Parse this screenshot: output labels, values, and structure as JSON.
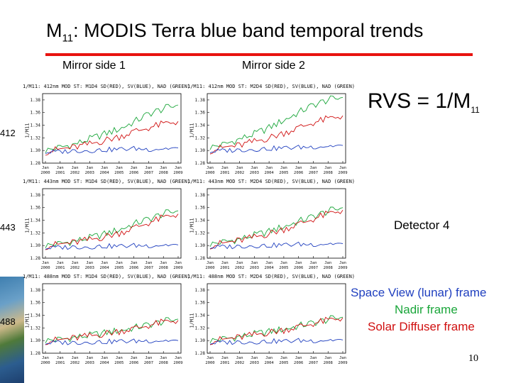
{
  "slide": {
    "title_main": "M",
    "title_sub": "11",
    "title_rest": ": MODIS Terra blue band temporal trends",
    "col1": "Mirror side 1",
    "col2": "Mirror side 2",
    "rvs_main": "RVS = 1/M",
    "rvs_sub": "11",
    "detector": "Detector 4",
    "legend": {
      "space_view": "Space View (lunar) frame",
      "nadir": "Nadir frame",
      "solar_diffuser": "Solar Diffuser frame"
    },
    "page_number": "10"
  },
  "colors": {
    "red_rule": "#e8130f",
    "space_view": "#1f3fbf",
    "nadir": "#1aa63a",
    "solar_diffuser": "#d01010"
  },
  "chart_data": [
    {
      "type": "line",
      "row_label": "412",
      "mirror": "1",
      "title": "1/M11: 412nm MOD ST: M1D4 SD(RED), SV(BLUE), NAD (GREEN)",
      "ylabel": "1/M11",
      "yticks": [
        "1.38",
        "1.36",
        "1.34",
        "1.32",
        "1.30",
        "1.28"
      ],
      "ylim": [
        1.28,
        1.39
      ],
      "xticks": [
        "Jan 2000",
        "Jan 2001",
        "Jan 2002",
        "Jan 2003",
        "Jan 2004",
        "Jan 2005",
        "Jan 2006",
        "Jan 2007",
        "Jan 2008",
        "Jan 2009"
      ],
      "series": [
        {
          "color": "#1aa63a",
          "values": [
            1.3,
            1.305,
            1.31,
            1.318,
            1.326,
            1.334,
            1.345,
            1.358,
            1.366,
            1.372
          ]
        },
        {
          "color": "#d01010",
          "values": [
            1.298,
            1.302,
            1.305,
            1.31,
            1.316,
            1.322,
            1.33,
            1.336,
            1.342,
            1.346
          ]
        },
        {
          "color": "#1f3fbf",
          "values": [
            1.297,
            1.298,
            1.3,
            1.3,
            1.301,
            1.302,
            1.303,
            1.302,
            1.303,
            1.304
          ]
        }
      ]
    },
    {
      "type": "line",
      "row_label": "412",
      "mirror": "2",
      "title": "1/M11: 412nm MOD ST: M2D4 SD(RED), SV(BLUE), NAD (GREEN)",
      "ylabel": "1/M11",
      "yticks": [
        "1.38",
        "1.36",
        "1.34",
        "1.32",
        "1.30",
        "1.28"
      ],
      "ylim": [
        1.28,
        1.39
      ],
      "xticks": [
        "Jan 2000",
        "Jan 2001",
        "Jan 2002",
        "Jan 2003",
        "Jan 2004",
        "Jan 2005",
        "Jan 2006",
        "Jan 2007",
        "Jan 2008",
        "Jan 2009"
      ],
      "series": [
        {
          "color": "#1aa63a",
          "values": [
            1.305,
            1.31,
            1.318,
            1.326,
            1.336,
            1.348,
            1.36,
            1.372,
            1.38,
            1.384
          ]
        },
        {
          "color": "#d01010",
          "values": [
            1.3,
            1.305,
            1.308,
            1.314,
            1.32,
            1.328,
            1.336,
            1.344,
            1.35,
            1.355
          ]
        },
        {
          "color": "#1f3fbf",
          "values": [
            1.298,
            1.3,
            1.301,
            1.302,
            1.303,
            1.304,
            1.305,
            1.306,
            1.307,
            1.308
          ]
        }
      ]
    },
    {
      "type": "line",
      "row_label": "443",
      "mirror": "1",
      "title": "1/M11: 443nm MOD ST: M1D4 SD(RED), SV(BLUE), NAD (GREEN)",
      "ylabel": "1/M11",
      "yticks": [
        "1.38",
        "1.36",
        "1.34",
        "1.32",
        "1.30",
        "1.28"
      ],
      "ylim": [
        1.28,
        1.39
      ],
      "xticks": [
        "Jan 2000",
        "Jan 2001",
        "Jan 2002",
        "Jan 2003",
        "Jan 2004",
        "Jan 2005",
        "Jan 2006",
        "Jan 2007",
        "Jan 2008",
        "Jan 2009"
      ],
      "series": [
        {
          "color": "#1aa63a",
          "values": [
            1.3,
            1.303,
            1.307,
            1.312,
            1.318,
            1.325,
            1.334,
            1.342,
            1.35,
            1.355
          ]
        },
        {
          "color": "#d01010",
          "values": [
            1.299,
            1.302,
            1.305,
            1.309,
            1.314,
            1.32,
            1.328,
            1.336,
            1.344,
            1.35
          ]
        },
        {
          "color": "#1f3fbf",
          "values": [
            1.296,
            1.297,
            1.298,
            1.298,
            1.299,
            1.299,
            1.3,
            1.3,
            1.301,
            1.301
          ]
        }
      ]
    },
    {
      "type": "line",
      "row_label": "443",
      "mirror": "2",
      "title": "1/M11: 443nm MOD ST: M2D4 SD(RED), SV(BLUE), NAD (GREEN)",
      "ylabel": "1/M11",
      "yticks": [
        "1.38",
        "1.36",
        "1.34",
        "1.32",
        "1.30",
        "1.28"
      ],
      "ylim": [
        1.28,
        1.39
      ],
      "xticks": [
        "Jan 2000",
        "Jan 2001",
        "Jan 2002",
        "Jan 2003",
        "Jan 2004",
        "Jan 2005",
        "Jan 2006",
        "Jan 2007",
        "Jan 2008",
        "Jan 2009"
      ],
      "series": [
        {
          "color": "#1aa63a",
          "values": [
            1.302,
            1.306,
            1.31,
            1.316,
            1.322,
            1.33,
            1.338,
            1.346,
            1.354,
            1.36
          ]
        },
        {
          "color": "#d01010",
          "values": [
            1.3,
            1.304,
            1.308,
            1.313,
            1.319,
            1.326,
            1.334,
            1.342,
            1.35,
            1.356
          ]
        },
        {
          "color": "#1f3fbf",
          "values": [
            1.297,
            1.298,
            1.299,
            1.3,
            1.3,
            1.301,
            1.302,
            1.302,
            1.303,
            1.303
          ]
        }
      ]
    },
    {
      "type": "line",
      "row_label": "488",
      "mirror": "1",
      "title": "1/M11: 488nm MOD ST: M1D4 SD(RED), SV(BLUE), NAD (GREEN)",
      "ylabel": "1/M11",
      "yticks": [
        "1.38",
        "1.36",
        "1.34",
        "1.32",
        "1.30",
        "1.28"
      ],
      "ylim": [
        1.28,
        1.39
      ],
      "xticks": [
        "Jan 2000",
        "Jan 2001",
        "Jan 2002",
        "Jan 2003",
        "Jan 2004",
        "Jan 2005",
        "Jan 2006",
        "Jan 2007",
        "Jan 2008",
        "Jan 2009"
      ],
      "series": [
        {
          "color": "#1aa63a",
          "values": [
            1.3,
            1.302,
            1.305,
            1.308,
            1.312,
            1.316,
            1.32,
            1.325,
            1.33,
            1.334
          ]
        },
        {
          "color": "#d01010",
          "values": [
            1.299,
            1.301,
            1.304,
            1.307,
            1.311,
            1.315,
            1.319,
            1.324,
            1.329,
            1.332
          ]
        },
        {
          "color": "#1f3fbf",
          "values": [
            1.296,
            1.297,
            1.297,
            1.298,
            1.298,
            1.299,
            1.299,
            1.3,
            1.3,
            1.3
          ]
        }
      ]
    },
    {
      "type": "line",
      "row_label": "488",
      "mirror": "2",
      "title": "1/M11: 488nm MOD ST: M2D4 SD(RED), SV(BLUE), NAD (GREEN)",
      "ylabel": "1/M11",
      "yticks": [
        "1.38",
        "1.36",
        "1.34",
        "1.32",
        "1.30",
        "1.28"
      ],
      "ylim": [
        1.28,
        1.39
      ],
      "xticks": [
        "Jan 2000",
        "Jan 2001",
        "Jan 2002",
        "Jan 2003",
        "Jan 2004",
        "Jan 2005",
        "Jan 2006",
        "Jan 2007",
        "Jan 2008",
        "Jan 2009"
      ],
      "series": [
        {
          "color": "#1aa63a",
          "values": [
            1.3,
            1.303,
            1.306,
            1.31,
            1.314,
            1.318,
            1.323,
            1.328,
            1.333,
            1.337
          ]
        },
        {
          "color": "#d01010",
          "values": [
            1.299,
            1.302,
            1.305,
            1.309,
            1.313,
            1.317,
            1.322,
            1.327,
            1.332,
            1.336
          ]
        },
        {
          "color": "#1f3fbf",
          "values": [
            1.296,
            1.297,
            1.298,
            1.298,
            1.299,
            1.299,
            1.3,
            1.3,
            1.301,
            1.301
          ]
        }
      ]
    }
  ]
}
